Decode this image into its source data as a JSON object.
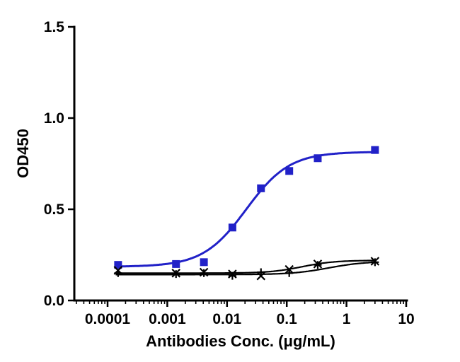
{
  "figure": {
    "background_color": "#ffffff"
  },
  "chart_data": {
    "type": "line",
    "title": "",
    "xlabel": "Antibodies Conc. (μg/mL)",
    "ylabel": "OD450",
    "x_scale": "log10",
    "xlim": [
      3e-05,
      10
    ],
    "ylim": [
      0,
      1.5
    ],
    "grid": false,
    "legend_position": "none",
    "y_ticks": [
      0.0,
      0.5,
      1.0,
      1.5
    ],
    "y_tick_labels": [
      "0.0",
      "0.5",
      "1.0",
      "1.5"
    ],
    "x_ticks": [
      0.0001,
      0.001,
      0.01,
      0.1,
      1,
      10
    ],
    "x_tick_labels": [
      "0.0001",
      "0.001",
      "0.01",
      "0.1",
      "1",
      "10"
    ],
    "x_minor_ticks": true,
    "series": [
      {
        "name": "blue-squares",
        "marker": "square",
        "color": "#2121c8",
        "line_width": 3,
        "x": [
          0.00015,
          0.0014,
          0.0041,
          0.0123,
          0.037,
          0.11,
          0.33,
          3
        ],
        "y": [
          0.195,
          0.2,
          0.21,
          0.4,
          0.615,
          0.71,
          0.78,
          0.825
        ],
        "fit": {
          "model": "4PL",
          "bottom": 0.185,
          "top": 0.815,
          "ec50": 0.021,
          "hill": 1.2
        }
      },
      {
        "name": "black-x",
        "marker": "x",
        "color": "#000000",
        "line_width": 2.2,
        "x": [
          0.00015,
          0.0014,
          0.0041,
          0.0123,
          0.037,
          0.11,
          0.33,
          3
        ],
        "y": [
          0.165,
          0.15,
          0.155,
          0.145,
          0.135,
          0.17,
          0.2,
          0.215
        ],
        "fit": {
          "model": "4PL",
          "bottom": 0.15,
          "top": 0.22,
          "ec50": 0.18,
          "hill": 1.6
        }
      },
      {
        "name": "black-plus",
        "marker": "plus",
        "color": "#000000",
        "line_width": 2.2,
        "x": [
          0.00015,
          0.0014,
          0.0041,
          0.0123,
          0.037,
          0.11,
          0.33,
          3
        ],
        "y": [
          0.15,
          0.145,
          0.15,
          0.135,
          0.155,
          0.15,
          0.195,
          0.21
        ],
        "fit": {
          "model": "4PL",
          "bottom": 0.142,
          "top": 0.215,
          "ec50": 0.5,
          "hill": 1.4
        }
      }
    ]
  }
}
